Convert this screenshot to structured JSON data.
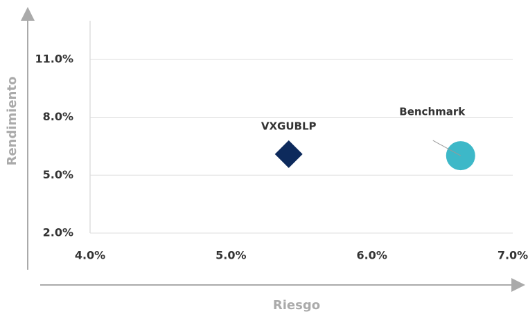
{
  "chart_data": {
    "type": "scatter",
    "xlabel": "Riesgo",
    "ylabel": "Rendimiento",
    "xlim": [
      4,
      7
    ],
    "ylim": [
      2,
      13
    ],
    "xticks": [
      {
        "value": 4,
        "label": "4.0%"
      },
      {
        "value": 5,
        "label": "5.0%"
      },
      {
        "value": 6,
        "label": "6.0%"
      },
      {
        "value": 7,
        "label": "7.0%"
      }
    ],
    "yticks": [
      {
        "value": 2,
        "label": "2.0%"
      },
      {
        "value": 5,
        "label": "5.0%"
      },
      {
        "value": 8,
        "label": "8.0%"
      },
      {
        "value": 11,
        "label": "11.0%"
      }
    ],
    "grid": true,
    "series": [
      {
        "name": "VXGUBLP",
        "color": "#0d2a5c",
        "marker": "diamond",
        "x": [
          5.41
        ],
        "values": [
          6.09
        ]
      },
      {
        "name": "Benchmark",
        "color": "#3db8c8",
        "marker": "circle",
        "x": [
          6.63
        ],
        "values": [
          6.01
        ]
      }
    ]
  }
}
